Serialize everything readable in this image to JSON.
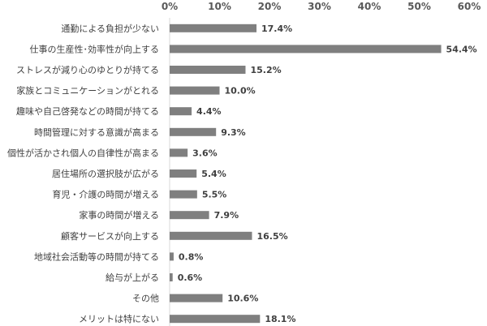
{
  "chart_data": {
    "type": "bar",
    "orientation": "horizontal",
    "title": "",
    "xlabel": "",
    "ylabel": "",
    "xlim": [
      0,
      60
    ],
    "x_ticks": [
      "0%",
      "10%",
      "20%",
      "30%",
      "40%",
      "50%",
      "60%"
    ],
    "x_axis_position": "top",
    "grid": false,
    "legend": "none",
    "bar_color": "#7f7f7f",
    "categories": [
      "通勤による負担が少ない",
      "仕事の生産性･効率性が向上する",
      "ストレスが減り心のゆとりが持てる",
      "家族とコミュニケーションがとれる",
      "趣味や自己啓発などの時間が持てる",
      "時間管理に対する意識が高まる",
      "個性が活かされ個人の自律性が高まる",
      "居住場所の選択肢が広がる",
      "育児・介護の時間が増える",
      "家事の時間が増える",
      "顧客サービスが向上する",
      "地域社会活動等の時間が持てる",
      "給与が上がる",
      "その他",
      "メリットは特にない"
    ],
    "values": [
      17.4,
      54.4,
      15.2,
      10.0,
      4.4,
      9.3,
      3.6,
      5.4,
      5.5,
      7.9,
      16.5,
      0.8,
      0.6,
      10.6,
      18.1
    ],
    "value_labels": [
      "17.4%",
      "54.4%",
      "15.2%",
      "10.0%",
      "4.4%",
      "9.3%",
      "3.6%",
      "5.4%",
      "5.5%",
      "7.9%",
      "16.5%",
      "0.8%",
      "0.6%",
      "10.6%",
      "18.1%"
    ]
  }
}
